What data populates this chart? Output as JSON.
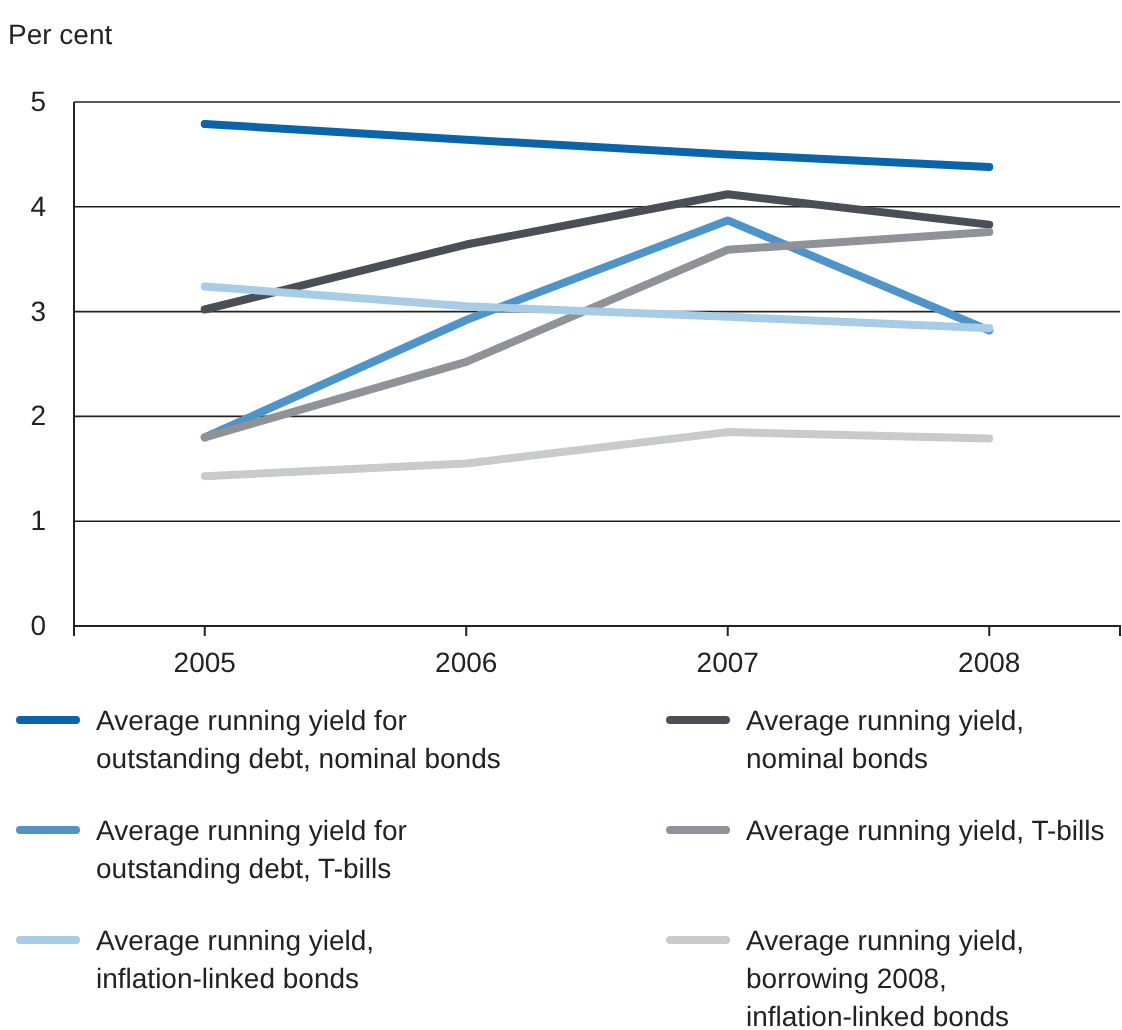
{
  "chart_data": {
    "type": "line",
    "ylabel": "Per cent",
    "categories": [
      "2005",
      "2006",
      "2007",
      "2008"
    ],
    "series": [
      {
        "name": "Average running yield for outstanding debt, nominal bonds",
        "color": "#0a64aa",
        "values": [
          4.79,
          4.64,
          4.5,
          4.38
        ]
      },
      {
        "name": "Average running yield, nominal bonds",
        "color": "#4a4f55",
        "values": [
          3.02,
          3.64,
          4.12,
          3.83
        ]
      },
      {
        "name": "Average running yield for outstanding debt, T-bills",
        "color": "#4f94c8",
        "values": [
          1.8,
          2.92,
          3.87,
          2.82
        ]
      },
      {
        "name": "Average running yield, T-bills",
        "color": "#8f9296",
        "values": [
          1.8,
          2.52,
          3.59,
          3.76
        ]
      },
      {
        "name": "Average running yield, inflation-linked bonds",
        "color": "#a8cbe6",
        "values": [
          3.24,
          3.05,
          2.95,
          2.84
        ]
      },
      {
        "name": "Average running yield, borrowing 2008, inflation-linked bonds",
        "color": "#c8cacc",
        "values": [
          1.43,
          1.55,
          1.85,
          1.79
        ]
      }
    ],
    "ylim": [
      0,
      5
    ],
    "yticks": [
      0,
      1,
      2,
      3,
      4,
      5
    ],
    "grid": "y",
    "legend": "bottom",
    "marker": "none",
    "line_style": "solid"
  }
}
